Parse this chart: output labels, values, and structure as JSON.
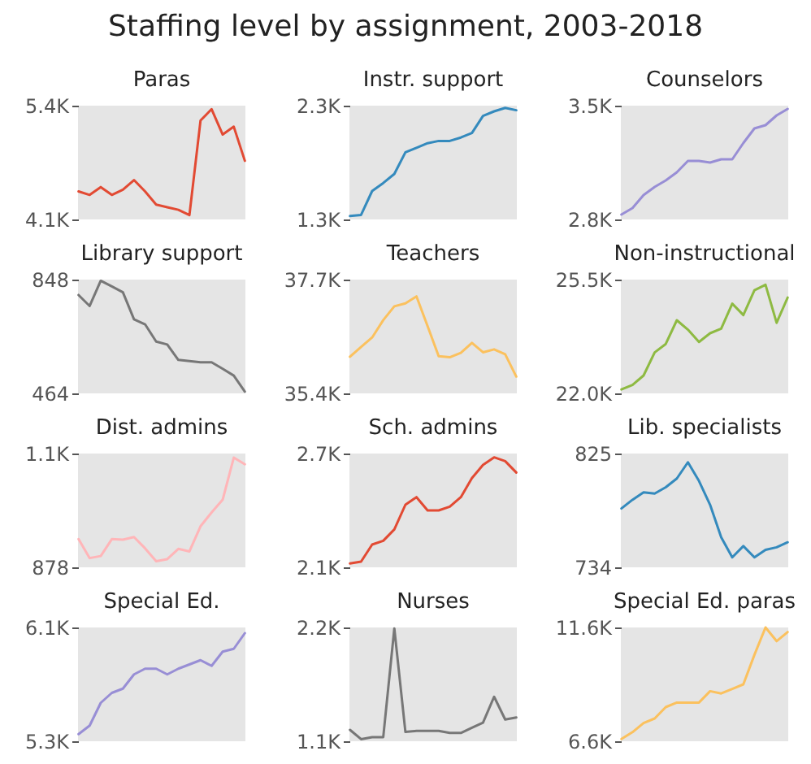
{
  "chart_data": [
    {
      "type": "other",
      "title": "Staffing level by assignment, 2003-2018"
    },
    {
      "type": "line",
      "title": "Paras",
      "categories": [
        null,
        null,
        null,
        null,
        null,
        null,
        null,
        null,
        null,
        null,
        null,
        null,
        null,
        null,
        null,
        null
      ],
      "color": "#e24a33",
      "ylim": [
        4100,
        5400
      ],
      "yticks": [
        {
          "value": 4100,
          "label": "4.1K"
        },
        {
          "value": 5400,
          "label": "5.4K"
        }
      ],
      "tick_labels": "y",
      "values": [
        4420,
        4380,
        4470,
        4380,
        4440,
        4550,
        4420,
        4270,
        4240,
        4210,
        4150,
        5230,
        5360,
        5070,
        5160,
        4770
      ]
    },
    {
      "type": "line",
      "title": "Instr. support",
      "categories": [
        null,
        null,
        null,
        null,
        null,
        null,
        null,
        null,
        null,
        null,
        null,
        null,
        null,
        null,
        null,
        null
      ],
      "color": "#348abd",
      "ylim": [
        1300,
        2300
      ],
      "yticks": [
        {
          "value": 1300,
          "label": "1.3K"
        },
        {
          "value": 2300,
          "label": "2.3K"
        }
      ],
      "tick_labels": "y",
      "values": [
        1330,
        1340,
        1550,
        1620,
        1700,
        1890,
        1930,
        1970,
        1990,
        1990,
        2020,
        2060,
        2210,
        2250,
        2280,
        2260
      ]
    },
    {
      "type": "line",
      "title": "Counselors",
      "categories": [
        null,
        null,
        null,
        null,
        null,
        null,
        null,
        null,
        null,
        null,
        null,
        null,
        null,
        null,
        null,
        null
      ],
      "color": "#988ed5",
      "ylim": [
        2800,
        3500
      ],
      "yticks": [
        {
          "value": 2800,
          "label": "2.8K"
        },
        {
          "value": 3500,
          "label": "3.5K"
        }
      ],
      "tick_labels": "y",
      "values": [
        2830,
        2870,
        2950,
        3000,
        3040,
        3090,
        3160,
        3160,
        3150,
        3170,
        3170,
        3270,
        3360,
        3380,
        3440,
        3480
      ]
    },
    {
      "type": "line",
      "title": "Library support",
      "categories": [
        null,
        null,
        null,
        null,
        null,
        null,
        null,
        null,
        null,
        null,
        null,
        null,
        null,
        null,
        null,
        null
      ],
      "color": "#777777",
      "ylim": [
        464,
        848
      ],
      "yticks": [
        464,
        848
      ],
      "tick_labels": "y",
      "values": [
        796,
        759,
        844,
        825,
        805,
        714,
        697,
        639,
        629,
        577,
        573,
        569,
        569,
        547,
        524,
        470
      ]
    },
    {
      "type": "line",
      "title": "Teachers",
      "categories": [
        null,
        null,
        null,
        null,
        null,
        null,
        null,
        null,
        null,
        null,
        null,
        null,
        null,
        null,
        null,
        null
      ],
      "color": "#fbc15e",
      "ylim": [
        35400,
        37700
      ],
      "yticks": [
        {
          "value": 35400,
          "label": "35.4K"
        },
        {
          "value": 37700,
          "label": "37.7K"
        }
      ],
      "tick_labels": "y",
      "values": [
        36140,
        36340,
        36530,
        36880,
        37160,
        37220,
        37360,
        36760,
        36150,
        36130,
        36220,
        36420,
        36230,
        36290,
        36190,
        35740
      ]
    },
    {
      "type": "line",
      "title": "Non-instructional",
      "categories": [
        null,
        null,
        null,
        null,
        null,
        null,
        null,
        null,
        null,
        null,
        null,
        null,
        null,
        null,
        null,
        null
      ],
      "color": "#8eba42",
      "ylim": [
        22000,
        25500
      ],
      "yticks": [
        {
          "value": 22000,
          "label": "22.0K"
        },
        {
          "value": 25500,
          "label": "25.5K"
        }
      ],
      "tick_labels": "y",
      "values": [
        22120,
        22260,
        22550,
        23260,
        23520,
        24250,
        23960,
        23580,
        23850,
        23990,
        24760,
        24410,
        25170,
        25340,
        24170,
        24950
      ]
    },
    {
      "type": "line",
      "title": "Dist. admins",
      "categories": [
        null,
        null,
        null,
        null,
        null,
        null,
        null,
        null,
        null,
        null,
        null,
        null,
        null,
        null,
        null,
        null
      ],
      "color": "#ffb5b8",
      "ylim": [
        878,
        1100
      ],
      "yticks": [
        878,
        {
          "value": 1100,
          "label": "1.1K"
        }
      ],
      "tick_labels": "y",
      "values": [
        933,
        896,
        900,
        933,
        932,
        937,
        915,
        890,
        894,
        914,
        909,
        958,
        985,
        1010,
        1092,
        1079
      ]
    },
    {
      "type": "line",
      "title": "Sch. admins",
      "categories": [
        null,
        null,
        null,
        null,
        null,
        null,
        null,
        null,
        null,
        null,
        null,
        null,
        null,
        null,
        null,
        null
      ],
      "color": "#e24a33",
      "ylim": [
        2100,
        2700
      ],
      "yticks": [
        {
          "value": 2100,
          "label": "2.1K"
        },
        {
          "value": 2700,
          "label": "2.7K"
        }
      ],
      "tick_labels": "y",
      "values": [
        2120,
        2130,
        2220,
        2240,
        2300,
        2430,
        2470,
        2400,
        2400,
        2420,
        2470,
        2570,
        2640,
        2680,
        2660,
        2600
      ]
    },
    {
      "type": "line",
      "title": "Lib. specialists",
      "categories": [
        null,
        null,
        null,
        null,
        null,
        null,
        null,
        null,
        null,
        null,
        null,
        null,
        null,
        null,
        null,
        null
      ],
      "color": "#348abd",
      "ylim": [
        734,
        825
      ],
      "yticks": [
        734,
        825
      ],
      "tick_labels": "y",
      "values": [
        781,
        788,
        794,
        793,
        798,
        805,
        818,
        803,
        784,
        758,
        742,
        751,
        742,
        748,
        750,
        754
      ]
    },
    {
      "type": "line",
      "title": "Special Ed.",
      "categories": [
        null,
        null,
        null,
        null,
        null,
        null,
        null,
        null,
        null,
        null,
        null,
        null,
        null,
        null,
        null,
        null
      ],
      "color": "#988ed5",
      "ylim": [
        5300,
        6100
      ],
      "yticks": [
        {
          "value": 5300,
          "label": "5.3K"
        },
        {
          "value": 6100,
          "label": "6.1K"
        }
      ],
      "tick_labels": "y",
      "values": [
        5350,
        5410,
        5570,
        5640,
        5670,
        5770,
        5810,
        5810,
        5770,
        5810,
        5840,
        5870,
        5830,
        5930,
        5950,
        6060
      ]
    },
    {
      "type": "line",
      "title": "Nurses",
      "categories": [
        null,
        null,
        null,
        null,
        null,
        null,
        null,
        null,
        null,
        null,
        null,
        null,
        null,
        null,
        null,
        null
      ],
      "color": "#777777",
      "ylim": [
        1100,
        2200
      ],
      "yticks": [
        {
          "value": 1100,
          "label": "1.1K"
        },
        {
          "value": 2200,
          "label": "2.2K"
        }
      ],
      "tick_labels": "y",
      "values": [
        1210,
        1120,
        1140,
        1140,
        2190,
        1190,
        1200,
        1200,
        1200,
        1180,
        1180,
        1230,
        1280,
        1530,
        1310,
        1330
      ]
    },
    {
      "type": "line",
      "title": "Special Ed. paras",
      "categories": [
        null,
        null,
        null,
        null,
        null,
        null,
        null,
        null,
        null,
        null,
        null,
        null,
        null,
        null,
        null,
        null
      ],
      "color": "#fbc15e",
      "ylim": [
        6600,
        11600
      ],
      "yticks": [
        {
          "value": 6600,
          "label": "6.6K"
        },
        {
          "value": 11600,
          "label": "11.6K"
        }
      ],
      "tick_labels": "y",
      "values": [
        6700,
        7000,
        7400,
        7600,
        8100,
        8300,
        8300,
        8300,
        8800,
        8700,
        8900,
        9100,
        10400,
        11600,
        11000,
        11400
      ]
    }
  ]
}
